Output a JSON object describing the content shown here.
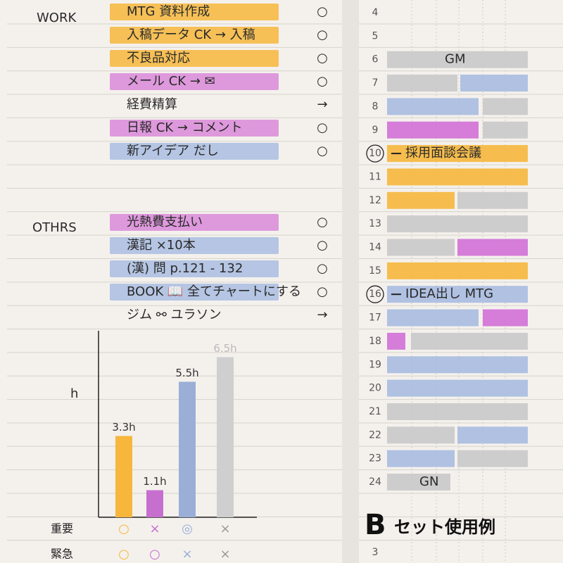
{
  "work": {
    "heading": "WORK",
    "items": [
      {
        "text": "MTG 資料作成",
        "status": "○",
        "color": "#f6b73c"
      },
      {
        "text": "入稿データ CK → 入稿",
        "status": "○",
        "color": "#f6b73c"
      },
      {
        "text": "不良品対応",
        "status": "○",
        "color": "#f6b73c"
      },
      {
        "text": "メール CK → ✉",
        "status": "○",
        "color": "#d98ad8"
      },
      {
        "text": "経費精算",
        "status": "→",
        "color": null
      },
      {
        "text": "日報 CK → コメント",
        "status": "○",
        "color": "#d98ad8"
      },
      {
        "text": "新アイデア だし",
        "status": "○",
        "color": "#a9bde0"
      }
    ]
  },
  "others": {
    "heading": "OTHRS",
    "items": [
      {
        "text": "光熱費支払い",
        "status": "○",
        "color": "#d98ad8"
      },
      {
        "text": "漢記 ×10本",
        "status": "○",
        "color": "#a9bde0"
      },
      {
        "text": "(漢) 問 p.121 - 132",
        "status": "○",
        "color": "#a9bde0"
      },
      {
        "text": "BOOK 📖 全てチャートにする",
        "status": "○",
        "color": "#a9bde0"
      },
      {
        "text": "ジム ⚯ ユラソン",
        "status": "→",
        "color": null
      }
    ]
  },
  "schedule": {
    "rows": [
      {
        "hour": "4"
      },
      {
        "hour": "5"
      },
      {
        "hour": "6",
        "note": "GM"
      },
      {
        "hour": "7"
      },
      {
        "hour": "8"
      },
      {
        "hour": "9"
      },
      {
        "hour": "10",
        "note": "採用面談会議"
      },
      {
        "hour": "11"
      },
      {
        "hour": "12"
      },
      {
        "hour": "13"
      },
      {
        "hour": "14"
      },
      {
        "hour": "15"
      },
      {
        "hour": "16",
        "note": "IDEA出し MTG"
      },
      {
        "hour": "17"
      },
      {
        "hour": "18"
      },
      {
        "hour": "19"
      },
      {
        "hour": "20"
      },
      {
        "hour": "21"
      },
      {
        "hour": "22"
      },
      {
        "hour": "23"
      },
      {
        "hour": "24",
        "note": "GN"
      },
      {
        "hour": "3"
      }
    ]
  },
  "chart_data": {
    "type": "bar",
    "y_label": "h",
    "categories": [
      null,
      null,
      null,
      null
    ],
    "values": [
      3.3,
      1.1,
      5.5,
      6.5
    ],
    "value_labels": [
      "3.3h",
      "1.1h",
      "5.5h",
      "6.5h"
    ],
    "colors": [
      "#f6b73c",
      "#c76fcf",
      "#9aaed6",
      "#cfcfcf"
    ],
    "ylim": [
      0,
      7
    ]
  },
  "matrix": {
    "rows": [
      {
        "label": "重要",
        "marks": [
          "○",
          "×",
          "◎",
          "×"
        ]
      },
      {
        "label": "緊急",
        "marks": [
          "○",
          "○",
          "×",
          "×"
        ]
      }
    ]
  },
  "caption": {
    "letter": "B",
    "text": "セット使用例"
  }
}
